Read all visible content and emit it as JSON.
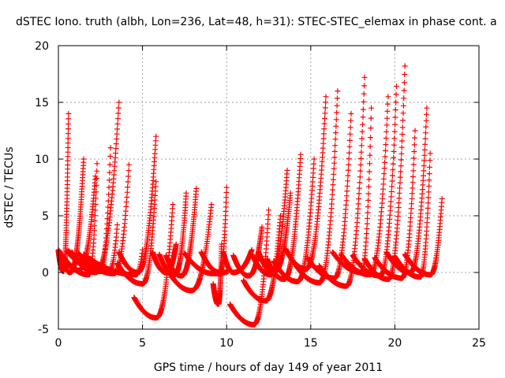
{
  "chart_data": {
    "type": "scatter",
    "title": "dSTEC Iono. truth (albh, Lon=236, Lat=48, h=31): STEC-STEC_elemax in phase cont. a",
    "xlabel": "GPS time / hours of day 149 of year 2011",
    "ylabel": "dSTEC  / TECUs",
    "xlim": [
      0,
      25
    ],
    "ylim": [
      -5,
      20
    ],
    "xticks": [
      0,
      5,
      10,
      15,
      20,
      25
    ],
    "yticks": [
      -5,
      0,
      5,
      10,
      15,
      20
    ],
    "grid": true,
    "marker": "+",
    "color": "#ff0000",
    "arcs": [
      {
        "start": 0.0,
        "min_t": 0.3,
        "min_v": 0.1,
        "end": 0.6,
        "end_v": 14.0
      },
      {
        "start": 0.1,
        "min_t": 0.7,
        "min_v": 0.0,
        "end": 1.5,
        "end_v": 10.0
      },
      {
        "start": 0.0,
        "min_t": 1.2,
        "min_v": 0.2,
        "end": 2.2,
        "end_v": 8.5
      },
      {
        "start": 0.2,
        "min_t": 1.8,
        "min_v": -0.2,
        "end": 2.3,
        "end_v": 9.6
      },
      {
        "start": 0.8,
        "min_t": 2.2,
        "min_v": 0.0,
        "end": 3.6,
        "end_v": 15.0
      },
      {
        "start": 0.5,
        "min_t": 2.5,
        "min_v": 0.1,
        "end": 3.1,
        "end_v": 11.0
      },
      {
        "start": 0.6,
        "min_t": 3.0,
        "min_v": 0.1,
        "end": 3.5,
        "end_v": 4.2
      },
      {
        "start": 1.2,
        "min_t": 3.3,
        "min_v": -0.1,
        "end": 4.2,
        "end_v": 9.5
      },
      {
        "start": 1.5,
        "min_t": 4.6,
        "min_v": -0.2,
        "end": 5.0,
        "end_v": 2.0
      },
      {
        "start": 3.6,
        "min_t": 4.7,
        "min_v": 0.0,
        "end": 5.8,
        "end_v": 12.0
      },
      {
        "start": 3.5,
        "min_t": 5.0,
        "min_v": -1.0,
        "end": 5.8,
        "end_v": 8.0
      },
      {
        "start": 4.5,
        "min_t": 5.8,
        "min_v": -4.0,
        "end": 6.8,
        "end_v": 6.0
      },
      {
        "start": 5.6,
        "min_t": 6.4,
        "min_v": 0.0,
        "end": 7.0,
        "end_v": 2.5
      },
      {
        "start": 6.0,
        "min_t": 6.9,
        "min_v": -0.2,
        "end": 7.6,
        "end_v": 7.0
      },
      {
        "start": 6.4,
        "min_t": 7.3,
        "min_v": -0.3,
        "end": 8.2,
        "end_v": 7.4
      },
      {
        "start": 6.5,
        "min_t": 7.9,
        "min_v": -1.6,
        "end": 9.1,
        "end_v": 6.0
      },
      {
        "start": 8.5,
        "min_t": 9.6,
        "min_v": 0.0,
        "end": 10.0,
        "end_v": 7.5
      },
      {
        "start": 7.5,
        "min_t": 9.2,
        "min_v": -0.1,
        "end": 10.1,
        "end_v": 0.1
      },
      {
        "start": 9.2,
        "min_t": 9.5,
        "min_v": -2.8,
        "end": 9.7,
        "end_v": 2.5
      },
      {
        "start": 9.8,
        "min_t": 10.4,
        "min_v": 0.0,
        "end": 11.5,
        "end_v": 2.0
      },
      {
        "start": 10.2,
        "min_t": 11.6,
        "min_v": -4.6,
        "end": 12.5,
        "end_v": 5.5
      },
      {
        "start": 10.4,
        "min_t": 11.3,
        "min_v": -0.3,
        "end": 12.1,
        "end_v": 4.0
      },
      {
        "start": 11.0,
        "min_t": 12.3,
        "min_v": -2.5,
        "end": 13.2,
        "end_v": 5.0
      },
      {
        "start": 11.5,
        "min_t": 12.6,
        "min_v": -0.2,
        "end": 13.6,
        "end_v": 9.0
      },
      {
        "start": 11.9,
        "min_t": 12.8,
        "min_v": 0.0,
        "end": 13.8,
        "end_v": 7.0
      },
      {
        "start": 12.4,
        "min_t": 13.4,
        "min_v": -0.6,
        "end": 14.4,
        "end_v": 10.4
      },
      {
        "start": 12.8,
        "min_t": 14.2,
        "min_v": -0.8,
        "end": 15.2,
        "end_v": 10.0
      },
      {
        "start": 13.5,
        "min_t": 14.7,
        "min_v": 0.3,
        "end": 15.9,
        "end_v": 15.5
      },
      {
        "start": 14.0,
        "min_t": 15.5,
        "min_v": -0.9,
        "end": 16.6,
        "end_v": 16.0
      },
      {
        "start": 14.8,
        "min_t": 16.4,
        "min_v": -0.5,
        "end": 17.4,
        "end_v": 14.0
      },
      {
        "start": 15.5,
        "min_t": 17.1,
        "min_v": -1.2,
        "end": 18.2,
        "end_v": 17.2
      },
      {
        "start": 16.3,
        "min_t": 18.0,
        "min_v": 0.0,
        "end": 18.6,
        "end_v": 14.5
      },
      {
        "start": 16.8,
        "min_t": 18.5,
        "min_v": -0.2,
        "end": 19.6,
        "end_v": 15.5
      },
      {
        "start": 17.5,
        "min_t": 19.1,
        "min_v": -0.3,
        "end": 20.1,
        "end_v": 16.4
      },
      {
        "start": 18.2,
        "min_t": 19.6,
        "min_v": -0.6,
        "end": 20.6,
        "end_v": 18.2
      },
      {
        "start": 18.8,
        "min_t": 20.4,
        "min_v": -0.5,
        "end": 21.2,
        "end_v": 12.5
      },
      {
        "start": 19.5,
        "min_t": 20.9,
        "min_v": 0.0,
        "end": 21.9,
        "end_v": 14.5
      },
      {
        "start": 20.0,
        "min_t": 21.5,
        "min_v": -0.4,
        "end": 22.1,
        "end_v": 10.5
      },
      {
        "start": 20.6,
        "min_t": 22.1,
        "min_v": -0.2,
        "end": 22.8,
        "end_v": 6.5
      }
    ]
  }
}
